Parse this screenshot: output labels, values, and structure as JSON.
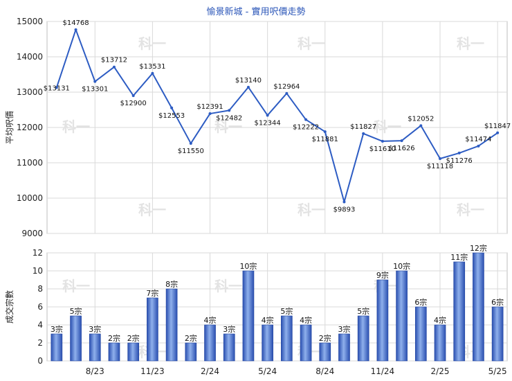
{
  "title": "愉景新城 - 實用呎價走勢",
  "colors": {
    "line": "#2d5cc3",
    "bar_dark": "#2a4fb0",
    "bar_light": "#8fb0ec",
    "grid": "#d9d9d9",
    "title": "#2a55b8",
    "watermark": "#e3e3e3"
  },
  "watermark_text": "科一",
  "chart_data": [
    {
      "type": "line",
      "ylabel": "平均呎價",
      "ylim": [
        9000,
        15000
      ],
      "yticks": [
        9000,
        10000,
        11000,
        12000,
        13000,
        14000,
        15000
      ],
      "grid": true,
      "values": [
        13131,
        14768,
        13301,
        13712,
        12900,
        13531,
        12553,
        11550,
        12391,
        12482,
        13140,
        12344,
        12964,
        12222,
        11881,
        9893,
        11827,
        11610,
        11626,
        12052,
        11118,
        11276,
        11474,
        11847
      ],
      "labels": [
        "$13131",
        "$14768",
        "$13301",
        "$13712",
        "$12900",
        "$13531",
        "$12553",
        "$11550",
        "$12391",
        "$12482",
        "$13140",
        "$12344",
        "$12964",
        "$12222",
        "$11881",
        "$9893",
        "$11827",
        "$11610",
        "$11626",
        "$12052",
        "$11118",
        "$11276",
        "$11474",
        "$11847"
      ],
      "label_pos": [
        "center",
        "above",
        "below",
        "above",
        "below",
        "above",
        "below",
        "below",
        "above",
        "below",
        "above",
        "below",
        "above",
        "below",
        "below",
        "below",
        "above",
        "below",
        "below",
        "above",
        "below",
        "below",
        "above",
        "above"
      ]
    },
    {
      "type": "bar",
      "ylabel": "成交宗數",
      "ylim": [
        0,
        12
      ],
      "yticks": [
        0,
        2,
        4,
        6,
        8,
        10,
        12
      ],
      "grid": true,
      "values": [
        3,
        5,
        3,
        2,
        2,
        7,
        8,
        2,
        4,
        3,
        10,
        4,
        5,
        4,
        2,
        3,
        5,
        9,
        10,
        6,
        4,
        11,
        12,
        6
      ],
      "labels": [
        "3宗",
        "5宗",
        "3宗",
        "2宗",
        "2宗",
        "7宗",
        "8宗",
        "2宗",
        "4宗",
        "3宗",
        "10宗",
        "4宗",
        "5宗",
        "4宗",
        "2宗",
        "3宗",
        "5宗",
        "9宗",
        "10宗",
        "6宗",
        "4宗",
        "11宗",
        "12宗",
        "6宗"
      ],
      "xtick_labels": [
        "8/23",
        "11/23",
        "2/24",
        "5/24",
        "8/24",
        "11/24",
        "2/25",
        "5/25"
      ]
    }
  ]
}
